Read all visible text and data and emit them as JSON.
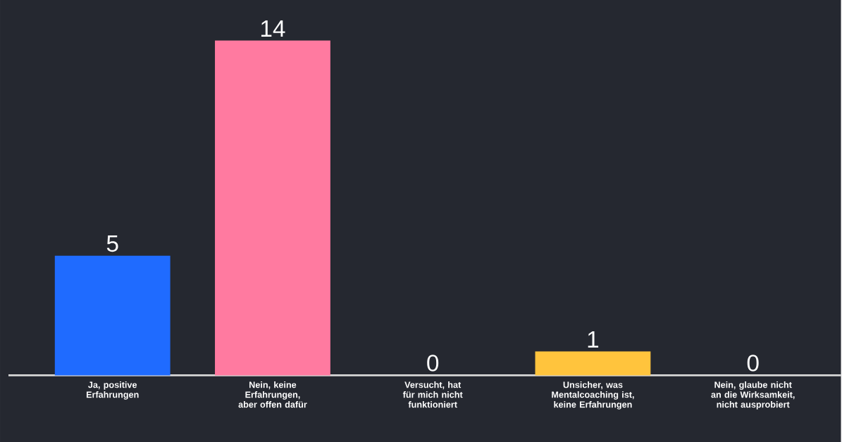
{
  "chart_data": {
    "type": "bar",
    "categories": [
      "Ja, positive Erfahrungen",
      "Nein, keine Erfahrungen, aber offen dafür",
      "Versucht, hat für mich nicht funktioniert",
      "Unsicher, was Mentalcoaching ist, keine Erfahrungen",
      "Nein, glaube nicht an die Wirksamkeit, nicht ausprobiert"
    ],
    "values": [
      5,
      14,
      0,
      1,
      0
    ],
    "colors": [
      "#1f6bff",
      "#ff7aa0",
      null,
      "#ffc43d",
      null
    ],
    "data_labels": true
  }
}
